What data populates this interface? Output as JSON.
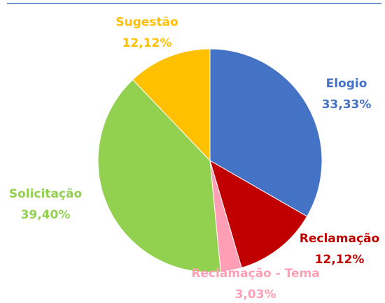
{
  "chart_data": {
    "type": "pie",
    "categories": [
      "Elogio",
      "Reclamação",
      "Reclamação - Tema",
      "Solicitação",
      "Sugestão"
    ],
    "values": [
      33.33,
      12.12,
      3.03,
      39.4,
      12.12
    ],
    "value_labels": [
      "33,33%",
      "12,12%",
      "3,03%",
      "39,40%",
      "12,12%"
    ],
    "colors": [
      "#4472c4",
      "#c00000",
      "#ff9eb5",
      "#92d050",
      "#ffc000"
    ]
  }
}
